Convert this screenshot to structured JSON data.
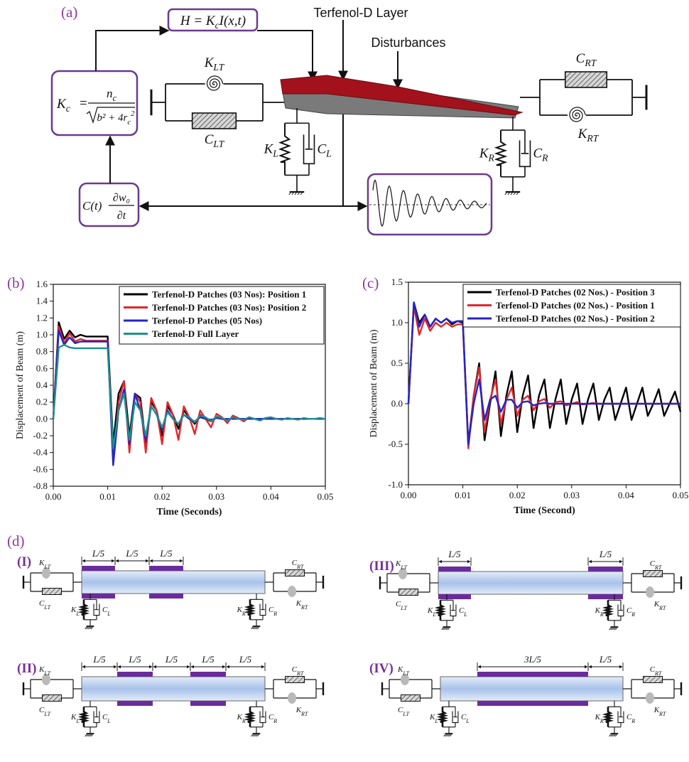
{
  "panel_a": {
    "label": "(a)",
    "h_formula": {
      "lhs": "H = K",
      "sub": "c",
      "rhs": "I(x,t)"
    },
    "kc_formula": {
      "lhs": "K",
      "lhs_sub": "c",
      "eq": "=",
      "num": "n",
      "num_sub": "c",
      "den": "b² + 4r",
      "den_sub": "c",
      "den_sup": "2"
    },
    "ct_formula": {
      "lhs": "C(t)",
      "num": "∂w₀",
      "den": "∂t"
    },
    "layer_label": "Terfenol-D Layer",
    "disturbance_label": "Disturbances"
  },
  "components": {
    "K_LT": {
      "base": "K",
      "sub": "LT"
    },
    "C_LT": {
      "base": "C",
      "sub": "LT"
    },
    "K_RT": {
      "base": "K",
      "sub": "RT"
    },
    "C_RT": {
      "base": "C",
      "sub": "RT"
    },
    "K_L": {
      "base": "K",
      "sub": "L"
    },
    "C_L": {
      "base": "C",
      "sub": "L"
    },
    "K_R": {
      "base": "K",
      "sub": "R"
    },
    "C_R": {
      "base": "C",
      "sub": "R"
    }
  },
  "chart_data": [
    {
      "type": "line",
      "label": "(b)",
      "x_label": "Time (Seconds)",
      "y_label": "Displacement of Beam (m)",
      "xlim": [
        0,
        0.05
      ],
      "ylim": [
        -0.8,
        1.6
      ],
      "xticks": [
        {
          "value": 0,
          "label": "0.00"
        },
        {
          "value": 0.01,
          "label": "0.01"
        },
        {
          "value": 0.02,
          "label": "0.02"
        },
        {
          "value": 0.03,
          "label": "0.03"
        },
        {
          "value": 0.04,
          "label": "0.04"
        },
        {
          "value": 0.05,
          "label": "0.05"
        }
      ],
      "yticks": [
        -0.8,
        -0.6,
        -0.4,
        -0.2,
        {
          "value": 0,
          "label": "0.0"
        },
        0.2,
        0.4,
        0.6,
        0.8,
        {
          "value": 1,
          "label": "1.0"
        },
        1.2,
        1.4,
        1.6
      ],
      "grid": false,
      "legend": "upper right",
      "x": [
        0,
        0.001,
        0.002,
        0.003,
        0.004,
        0.005,
        0.006,
        0.007,
        0.008,
        0.009,
        0.01,
        0.011,
        0.012,
        0.013,
        0.014,
        0.015,
        0.016,
        0.017,
        0.018,
        0.019,
        0.02,
        0.021,
        0.022,
        0.023,
        0.024,
        0.025,
        0.026,
        0.027,
        0.028,
        0.029,
        0.03,
        0.031,
        0.032,
        0.033,
        0.034,
        0.035,
        0.036,
        0.037,
        0.038,
        0.039,
        0.04,
        0.041,
        0.042,
        0.043,
        0.044,
        0.045,
        0.046,
        0.047,
        0.048,
        0.049,
        0.05
      ],
      "series": [
        {
          "name": "Terfenol-D Patches (03 Nos): Position 1",
          "color": "#000000",
          "values": [
            0,
            1.15,
            0.95,
            1.05,
            0.97,
            1.0,
            0.98,
            0.98,
            0.98,
            0.98,
            0.98,
            -0.3,
            0.3,
            0.45,
            -0.2,
            0.3,
            0.25,
            -0.3,
            0.2,
            0.1,
            -0.2,
            0.15,
            0.05,
            -0.12,
            0.1,
            0.02,
            -0.06,
            0.05,
            0,
            -0.03,
            0.02,
            0,
            -0.01,
            0.01,
            0,
            0,
            0,
            0,
            0,
            0,
            0,
            0,
            0,
            0,
            0,
            0,
            0,
            0,
            0,
            0,
            0
          ]
        },
        {
          "name": "Terfenol-D Patches (03 Nos): Position 2",
          "color": "#e0262b",
          "values": [
            0,
            1.1,
            0.9,
            1.02,
            0.92,
            0.95,
            0.93,
            0.93,
            0.93,
            0.93,
            0.93,
            -0.5,
            0.2,
            0.45,
            -0.4,
            0.3,
            0.2,
            -0.4,
            0.25,
            0.1,
            -0.3,
            0.2,
            0.05,
            -0.25,
            0.15,
            0.02,
            -0.18,
            0.1,
            0,
            -0.1,
            0.06,
            0.02,
            -0.05,
            0.04,
            0.01,
            -0.03,
            0.02,
            0,
            -0.01,
            0.01,
            0,
            0,
            0,
            0,
            0,
            0,
            0,
            0,
            0,
            0,
            0
          ]
        },
        {
          "name": "Terfenol-D Patches (05 Nos)",
          "color": "#2424c8",
          "values": [
            0,
            1.05,
            0.88,
            0.97,
            0.9,
            0.92,
            0.92,
            0.92,
            0.92,
            0.92,
            0.92,
            -0.55,
            0.1,
            0.35,
            -0.3,
            0.3,
            0.1,
            -0.25,
            0.15,
            0.05,
            -0.12,
            0.1,
            0,
            -0.06,
            0.05,
            0,
            -0.03,
            0.02,
            0,
            -0.01,
            0.01,
            0,
            0,
            0,
            0,
            0,
            0,
            0,
            0,
            0,
            0,
            0,
            0,
            0,
            0,
            0,
            0,
            0,
            0,
            0,
            0
          ]
        },
        {
          "name": "Terfenol-D Full Layer",
          "color": "#1f8f8f",
          "values": [
            0,
            0.85,
            0.88,
            0.85,
            0.84,
            0.84,
            0.84,
            0.84,
            0.84,
            0.84,
            0.84,
            -0.35,
            0.1,
            0.3,
            -0.25,
            0.2,
            0.1,
            -0.2,
            0.15,
            0.05,
            -0.1,
            0.08,
            0,
            -0.06,
            0.05,
            0.02,
            -0.04,
            0.04,
            0.02,
            -0.03,
            0.03,
            0.01,
            -0.02,
            0.02,
            0,
            -0.01,
            0.02,
            0,
            -0.02,
            0.01,
            0.02,
            0,
            -0.01,
            0.01,
            0,
            -0.01,
            0.01,
            0,
            0,
            0.01,
            0
          ]
        }
      ]
    },
    {
      "type": "line",
      "label": "(c)",
      "x_label": "Time (Second)",
      "y_label": "Displacement of Beam (m)",
      "xlim": [
        0,
        0.05
      ],
      "ylim": [
        -1,
        1.5
      ],
      "xticks": [
        {
          "value": 0,
          "label": "0.00"
        },
        {
          "value": 0.01,
          "label": "0.01"
        },
        {
          "value": 0.02,
          "label": "0.02"
        },
        {
          "value": 0.03,
          "label": "0.03"
        },
        {
          "value": 0.04,
          "label": "0.04"
        },
        {
          "value": 0.05,
          "label": "0.05"
        }
      ],
      "yticks": [
        {
          "value": -1,
          "label": "-1.0"
        },
        -0.5,
        {
          "value": 0,
          "label": "0.0"
        },
        0.5,
        {
          "value": 1,
          "label": "1.0"
        },
        1.5
      ],
      "grid": false,
      "legend": "upper right",
      "x": [
        0,
        0.001,
        0.002,
        0.003,
        0.004,
        0.005,
        0.006,
        0.007,
        0.008,
        0.009,
        0.01,
        0.011,
        0.012,
        0.013,
        0.014,
        0.015,
        0.016,
        0.017,
        0.018,
        0.019,
        0.02,
        0.021,
        0.022,
        0.023,
        0.024,
        0.025,
        0.026,
        0.027,
        0.028,
        0.029,
        0.03,
        0.031,
        0.032,
        0.033,
        0.034,
        0.035,
        0.036,
        0.037,
        0.038,
        0.039,
        0.04,
        0.041,
        0.042,
        0.043,
        0.044,
        0.045,
        0.046,
        0.047,
        0.048,
        0.049,
        0.05
      ],
      "series": [
        {
          "name": "Terfenol-D Patches (02 Nos.) - Position 3",
          "color": "#000000",
          "values": [
            0,
            1.25,
            1.0,
            1.1,
            0.95,
            1.05,
            1.0,
            1.05,
            0.98,
            1.02,
            1.0,
            -0.5,
            0.1,
            0.5,
            -0.45,
            0,
            0.4,
            -0.4,
            0.1,
            0.4,
            -0.35,
            0.1,
            0.35,
            -0.3,
            0.1,
            0.3,
            -0.3,
            0.05,
            0.3,
            -0.25,
            0.05,
            0.25,
            -0.25,
            0.05,
            0.25,
            -0.2,
            0.05,
            0.2,
            -0.2,
            0,
            0.2,
            -0.2,
            0,
            0.2,
            -0.15,
            0,
            0.18,
            -0.15,
            0,
            0.15,
            -0.1
          ]
        },
        {
          "name": "Terfenol-D Patches (02 Nos.) - Position 1",
          "color": "#e0262b",
          "values": [
            0,
            1.2,
            0.85,
            1.05,
            0.9,
            1.0,
            0.95,
            1.0,
            0.95,
            0.98,
            0.98,
            -0.55,
            0.1,
            0.45,
            -0.35,
            0.05,
            0.3,
            -0.25,
            0.05,
            0.2,
            -0.15,
            0.05,
            0.1,
            -0.08,
            0.03,
            0.06,
            -0.05,
            0.02,
            0.03,
            -0.02,
            0,
            0.02,
            -0.01,
            0,
            0.01,
            0,
            0,
            0,
            0,
            0,
            0,
            0,
            0,
            0,
            0,
            0,
            0,
            0,
            0,
            0,
            0
          ]
        },
        {
          "name": "Terfenol-D Patches (02 Nos.) - Position 2",
          "color": "#2424c8",
          "values": [
            0,
            1.25,
            0.95,
            1.1,
            0.95,
            1.05,
            1.0,
            1.05,
            1.0,
            1.02,
            1.02,
            -0.5,
            0,
            0.3,
            -0.2,
            0.05,
            0.1,
            -0.1,
            0.05,
            0.05,
            -0.05,
            0.02,
            0.03,
            -0.02,
            0,
            0.01,
            0,
            0,
            0,
            0,
            0,
            0,
            0,
            0,
            0,
            0,
            0,
            0,
            0,
            0,
            0,
            0,
            0,
            0,
            0,
            0,
            0,
            0,
            0,
            0,
            0
          ]
        }
      ]
    }
  ],
  "panel_d": {
    "label": "(d)",
    "configs": [
      {
        "label": "(I)",
        "dims": [
          "L/5",
          "L/5",
          "L/5"
        ]
      },
      {
        "label": "(II)",
        "dims": [
          "L/5",
          "L/5",
          "L/5",
          "L/5",
          "L/5"
        ]
      },
      {
        "label": "(III)",
        "dims": [
          "L/5",
          "L/5"
        ]
      },
      {
        "label": "(IV)",
        "dims": [
          "3L/5",
          "L/5"
        ]
      }
    ]
  }
}
